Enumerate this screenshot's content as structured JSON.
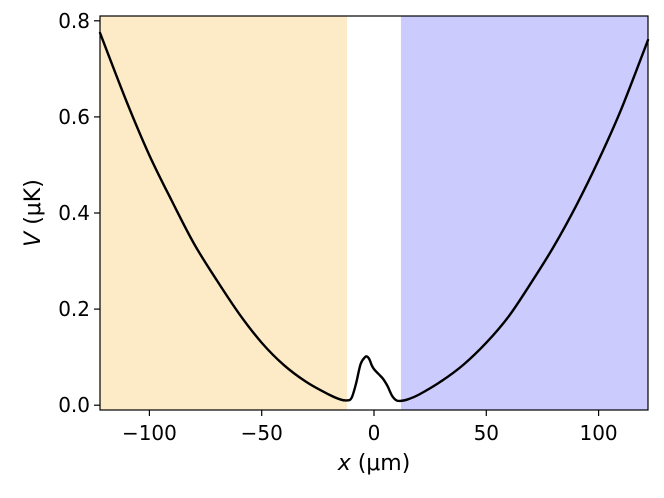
{
  "chart_data": {
    "type": "line",
    "xlabel_var": "x",
    "xlabel_unit": " (μm)",
    "ylabel_var": "V",
    "ylabel_unit": " (μK)",
    "xlim": [
      -122,
      122
    ],
    "ylim": [
      -0.01,
      0.81
    ],
    "xticks": [
      -100,
      -50,
      0,
      50,
      100
    ],
    "xtick_labels": [
      "−100",
      "−50",
      "0",
      "50",
      "100"
    ],
    "yticks": [
      0.0,
      0.2,
      0.4,
      0.6,
      0.8
    ],
    "ytick_labels": [
      "0.0",
      "0.2",
      "0.4",
      "0.6",
      "0.8"
    ],
    "grid": false,
    "shaded_regions": [
      {
        "x_range": [
          -122,
          -12
        ],
        "color": "#fdebc8"
      },
      {
        "x_range": [
          12,
          122
        ],
        "color": "#cbcbfd"
      }
    ],
    "series": [
      {
        "color": "#000000",
        "x": [
          -122,
          -110,
          -100,
          -90,
          -80,
          -70,
          -60,
          -50,
          -40,
          -30,
          -20,
          -15,
          -12,
          -10,
          -8,
          -6,
          -4,
          -3,
          -2,
          -1,
          0,
          2,
          4,
          6,
          8,
          10,
          12,
          15,
          20,
          30,
          40,
          50,
          60,
          70,
          80,
          90,
          100,
          110,
          122
        ],
        "y": [
          0.775,
          0.63,
          0.52,
          0.425,
          0.335,
          0.26,
          0.19,
          0.13,
          0.083,
          0.048,
          0.022,
          0.012,
          0.01,
          0.015,
          0.045,
          0.085,
          0.1,
          0.101,
          0.095,
          0.083,
          0.075,
          0.065,
          0.055,
          0.04,
          0.02,
          0.01,
          0.009,
          0.012,
          0.022,
          0.05,
          0.085,
          0.13,
          0.185,
          0.255,
          0.33,
          0.415,
          0.51,
          0.615,
          0.76
        ]
      }
    ]
  },
  "colors": {
    "line": "#000000",
    "region_left": "#fdebc8",
    "region_right": "#cbcbfd"
  }
}
